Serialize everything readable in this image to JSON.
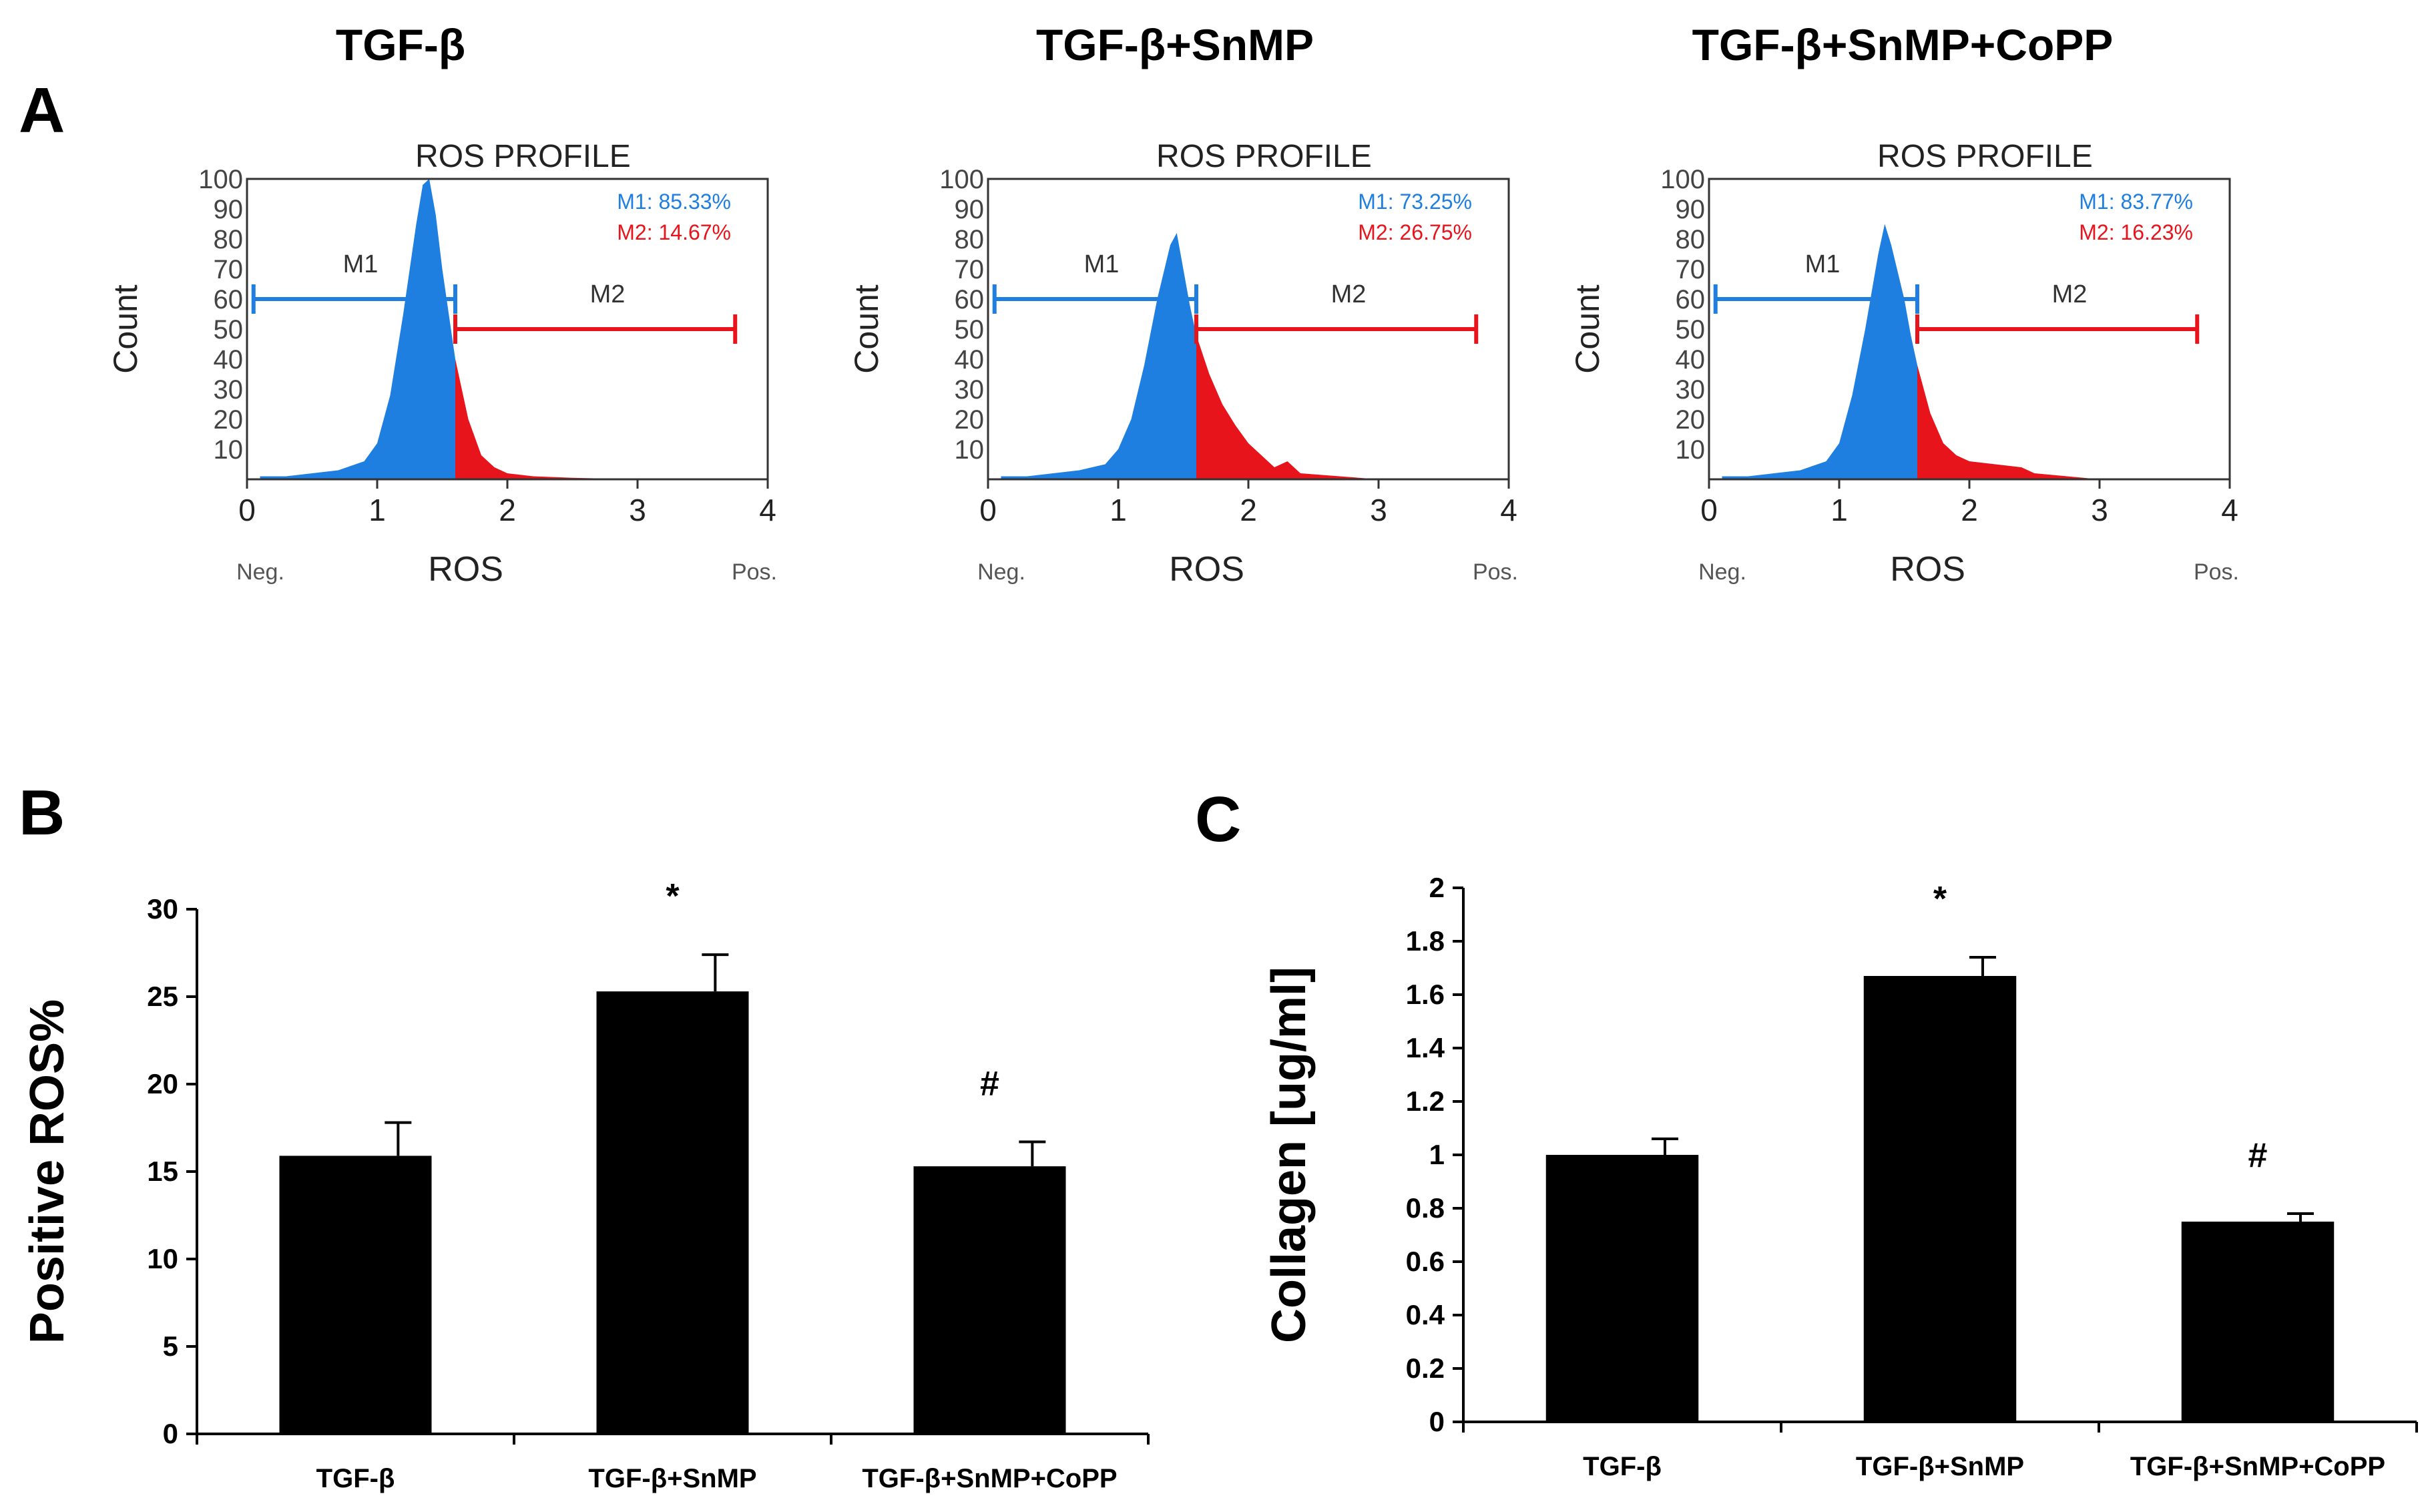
{
  "figure": {
    "panel_labels": {
      "a": "A",
      "b": "B",
      "c": "C"
    }
  },
  "chart_data": [
    {
      "type": "area",
      "panel": "A",
      "group_title": "TGF-β",
      "title": "ROS PROFILE",
      "xlabel": "ROS",
      "ylabel": "Count",
      "x_min_label": "Neg.",
      "x_max_label": "Pos.",
      "xlim": [
        0,
        4
      ],
      "ylim": [
        0,
        100
      ],
      "xticks": [
        "0",
        "1",
        "2",
        "3",
        "4"
      ],
      "yticks": [
        "10",
        "20",
        "30",
        "40",
        "50",
        "60",
        "70",
        "80",
        "90",
        "100"
      ],
      "gate_x": 1.6,
      "series": [
        {
          "name": "M1",
          "label": "M1",
          "percent_text": "M1: 85.33%",
          "color": "#1f7fe0",
          "range": [
            0.05,
            1.6
          ],
          "bar_y": 60
        },
        {
          "name": "M2",
          "label": "M2",
          "percent_text": "M2: 14.67%",
          "color": "#e8141c",
          "range": [
            1.6,
            3.75
          ],
          "bar_y": 50
        }
      ],
      "histogram": {
        "x": [
          0.1,
          0.3,
          0.5,
          0.7,
          0.9,
          1.0,
          1.1,
          1.2,
          1.3,
          1.35,
          1.4,
          1.45,
          1.5,
          1.55,
          1.6,
          1.7,
          1.8,
          1.9,
          2.0,
          2.2,
          2.5,
          3.0
        ],
        "y": [
          1,
          1,
          2,
          3,
          6,
          12,
          28,
          55,
          85,
          98,
          100,
          88,
          70,
          55,
          40,
          20,
          8,
          4,
          2,
          1,
          0.5,
          0
        ]
      }
    },
    {
      "type": "area",
      "panel": "A",
      "group_title": "TGF-β+SnMP",
      "title": "ROS PROFILE",
      "xlabel": "ROS",
      "ylabel": "Count",
      "x_min_label": "Neg.",
      "x_max_label": "Pos.",
      "xlim": [
        0,
        4
      ],
      "ylim": [
        0,
        100
      ],
      "xticks": [
        "0",
        "1",
        "2",
        "3",
        "4"
      ],
      "yticks": [
        "10",
        "20",
        "30",
        "40",
        "50",
        "60",
        "70",
        "80",
        "90",
        "100"
      ],
      "gate_x": 1.6,
      "series": [
        {
          "name": "M1",
          "label": "M1",
          "percent_text": "M1: 73.25%",
          "color": "#1f7fe0",
          "range": [
            0.05,
            1.6
          ],
          "bar_y": 60
        },
        {
          "name": "M2",
          "label": "M2",
          "percent_text": "M2: 26.75%",
          "color": "#e8141c",
          "range": [
            1.6,
            3.75
          ],
          "bar_y": 50
        }
      ],
      "histogram": {
        "x": [
          0.1,
          0.3,
          0.5,
          0.7,
          0.9,
          1.0,
          1.1,
          1.2,
          1.3,
          1.4,
          1.45,
          1.5,
          1.55,
          1.6,
          1.7,
          1.8,
          1.9,
          2.0,
          2.1,
          2.2,
          2.3,
          2.4,
          3.0
        ],
        "y": [
          1,
          1,
          2,
          3,
          5,
          10,
          20,
          38,
          60,
          78,
          82,
          70,
          58,
          48,
          35,
          25,
          18,
          12,
          8,
          4,
          6,
          2,
          0
        ]
      }
    },
    {
      "type": "area",
      "panel": "A",
      "group_title": "TGF-β+SnMP+CoPP",
      "title": "ROS PROFILE",
      "xlabel": "ROS",
      "ylabel": "Count",
      "x_min_label": "Neg.",
      "x_max_label": "Pos.",
      "xlim": [
        0,
        4
      ],
      "ylim": [
        0,
        100
      ],
      "xticks": [
        "0",
        "1",
        "2",
        "3",
        "4"
      ],
      "yticks": [
        "10",
        "20",
        "30",
        "40",
        "50",
        "60",
        "70",
        "80",
        "90",
        "100"
      ],
      "gate_x": 1.6,
      "series": [
        {
          "name": "M1",
          "label": "M1",
          "percent_text": "M1: 83.77%",
          "color": "#1f7fe0",
          "range": [
            0.05,
            1.6
          ],
          "bar_y": 60
        },
        {
          "name": "M2",
          "label": "M2",
          "percent_text": "M2: 16.23%",
          "color": "#e8141c",
          "range": [
            1.6,
            3.75
          ],
          "bar_y": 50
        }
      ],
      "histogram": {
        "x": [
          0.1,
          0.3,
          0.5,
          0.7,
          0.9,
          1.0,
          1.1,
          1.2,
          1.3,
          1.35,
          1.4,
          1.5,
          1.55,
          1.6,
          1.7,
          1.8,
          1.9,
          2.0,
          2.2,
          2.4,
          2.5,
          3.0
        ],
        "y": [
          1,
          1,
          2,
          3,
          6,
          12,
          28,
          50,
          75,
          85,
          78,
          60,
          48,
          38,
          22,
          12,
          8,
          6,
          5,
          4,
          2,
          0
        ]
      }
    },
    {
      "type": "bar",
      "panel": "B",
      "title": "",
      "xlabel": "",
      "ylabel": "Positive ROS%",
      "ylim": [
        0,
        30
      ],
      "yticks": [
        "0",
        "5",
        "10",
        "15",
        "20",
        "25",
        "30"
      ],
      "categories": [
        "TGF-β",
        "TGF-β+SnMP",
        "TGF-β+SnMP+CoPP"
      ],
      "values": [
        15.9,
        25.3,
        15.3
      ],
      "errors": [
        1.9,
        2.1,
        1.4
      ],
      "annotations": [
        "",
        "*",
        "#"
      ]
    },
    {
      "type": "bar",
      "panel": "C",
      "title": "",
      "xlabel": "",
      "ylabel": "Collagen [ug/ml]",
      "ylim": [
        0,
        2
      ],
      "yticks": [
        "0",
        "0.2",
        "0.4",
        "0.6",
        "0.8",
        "1",
        "1.2",
        "1.4",
        "1.6",
        "1.8",
        "2"
      ],
      "categories": [
        "TGF-β",
        "TGF-β+SnMP",
        "TGF-β+SnMP+CoPP"
      ],
      "values": [
        1.0,
        1.67,
        0.75
      ],
      "errors": [
        0.06,
        0.07,
        0.03
      ],
      "annotations": [
        "",
        "*",
        "#"
      ]
    }
  ]
}
